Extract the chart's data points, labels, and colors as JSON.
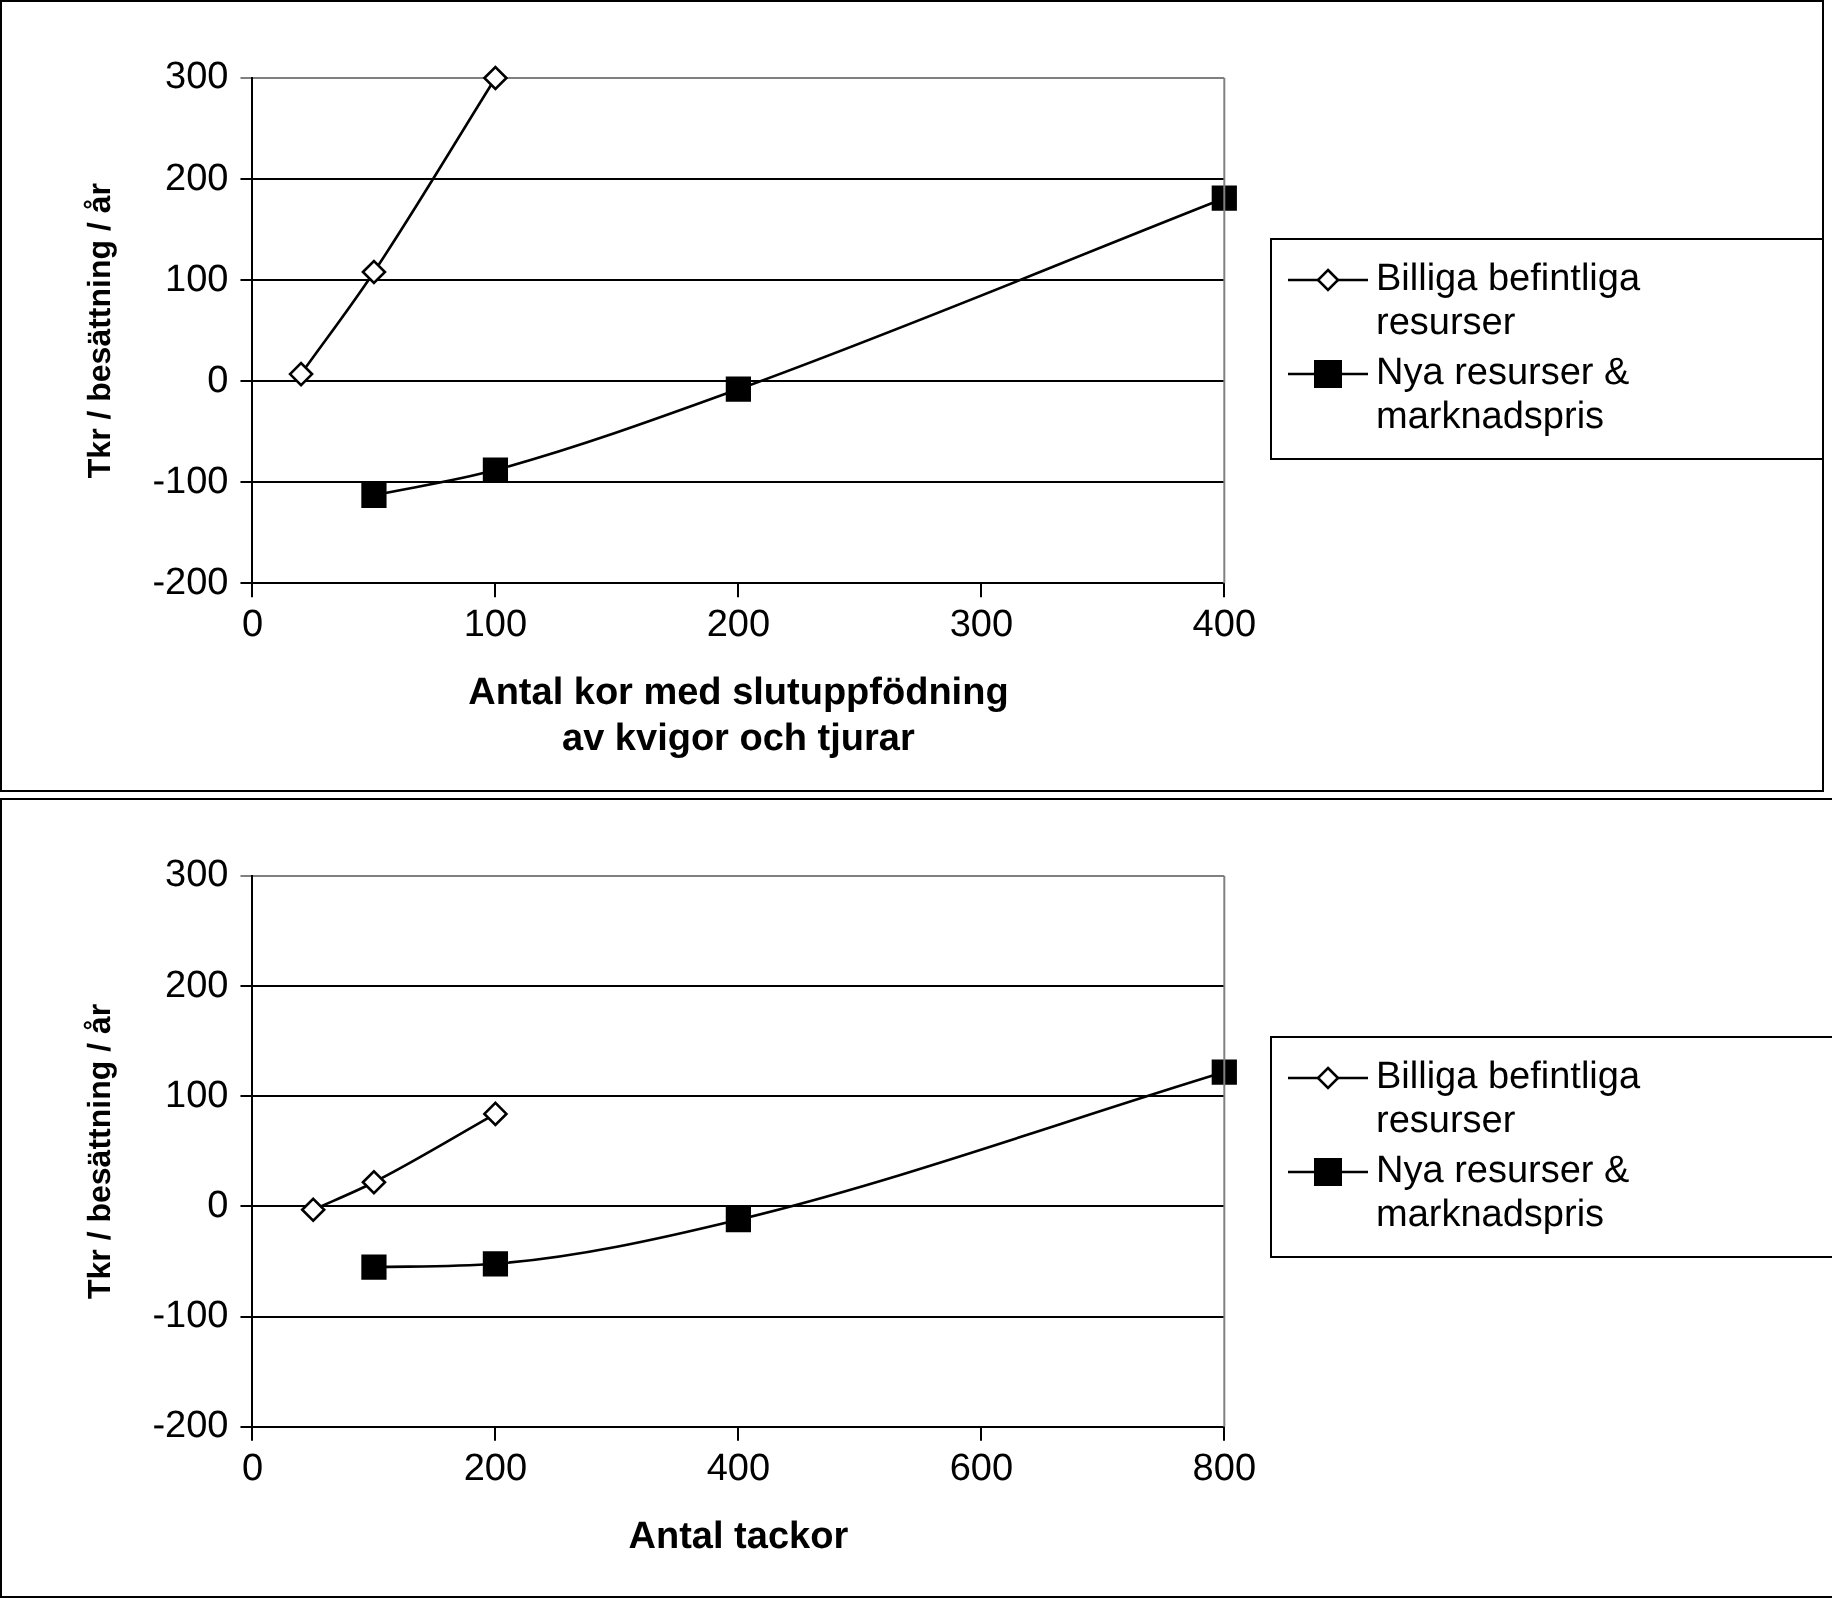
{
  "chart_data": [
    {
      "type": "line",
      "xlabel": "Antal kor med slutuppfödning\nav kvigor och tjurar",
      "ylabel": "Tkr / besättning / år",
      "xlim": [
        0,
        400
      ],
      "xticks": [
        0,
        100,
        200,
        300,
        400
      ],
      "ylim": [
        -200,
        300
      ],
      "yticks": [
        -200,
        -100,
        0,
        100,
        200,
        300
      ],
      "grid": "y",
      "legend": "right",
      "series": [
        {
          "name": "Billiga befintliga resurser",
          "color": "#000000",
          "marker": "diamond",
          "x": [
            20,
            50,
            100
          ],
          "values": [
            7,
            108,
            300
          ]
        },
        {
          "name": "Nya resurser & marknadspris",
          "color": "#000000",
          "marker": "square",
          "x": [
            50,
            100,
            200,
            400
          ],
          "values": [
            -113,
            -88,
            -8,
            181
          ]
        }
      ]
    },
    {
      "type": "line",
      "xlabel": "Antal tackor",
      "ylabel": "Tkr / besättning / år",
      "xlim": [
        0,
        800
      ],
      "xticks": [
        0,
        200,
        400,
        600,
        800
      ],
      "ylim": [
        -200,
        300
      ],
      "yticks": [
        -200,
        -100,
        0,
        100,
        200,
        300
      ],
      "grid": "y",
      "legend": "right",
      "series": [
        {
          "name": "Billiga befintliga resurser",
          "color": "#000000",
          "marker": "diamond",
          "x": [
            50,
            100,
            200
          ],
          "values": [
            -3,
            22,
            84
          ]
        },
        {
          "name": "Nya resurser & marknadspris",
          "color": "#000000",
          "marker": "square",
          "x": [
            100,
            200,
            400,
            800
          ],
          "values": [
            -55,
            -52,
            -12,
            122
          ]
        }
      ]
    }
  ]
}
